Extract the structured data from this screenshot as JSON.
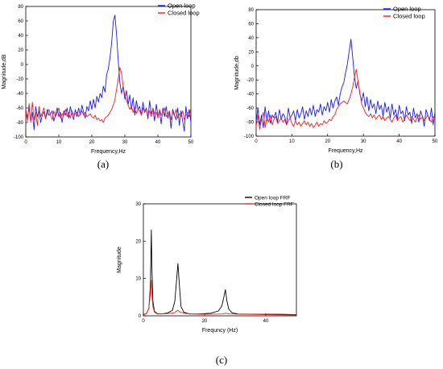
{
  "chart_data": [
    {
      "type": "line",
      "panel_label": "(a)",
      "xlabel": "Frequency,Hz",
      "ylabel": "Magnitude,dB",
      "xlim": [
        0,
        50
      ],
      "ylim": [
        -100,
        80
      ],
      "xticks": [
        "0",
        "10",
        "20",
        "30",
        "40",
        "50"
      ],
      "yticks": [
        "-100",
        "-80",
        "-60",
        "-40",
        "-20",
        "0",
        "20",
        "40",
        "60",
        "80"
      ],
      "legend_position": "top-right",
      "grid": false,
      "series": [
        {
          "name": "Open loop",
          "color": "#1a1aff",
          "x": [
            0,
            0.5,
            1,
            1.5,
            2,
            2.5,
            3,
            3.5,
            4,
            4.5,
            5,
            5.5,
            6,
            6.5,
            7,
            7.5,
            8,
            8.5,
            9,
            9.5,
            10,
            10.5,
            11,
            11.5,
            12,
            12.5,
            13,
            13.5,
            14,
            14.5,
            15,
            15.5,
            16,
            16.5,
            17,
            17.5,
            18,
            18.5,
            19,
            19.5,
            20,
            20.5,
            21,
            21.5,
            22,
            22.5,
            23,
            23.5,
            24,
            24.5,
            25,
            25.5,
            26,
            26.5,
            27,
            27.5,
            28,
            28.5,
            29,
            29.5,
            30,
            30.5,
            31,
            31.5,
            32,
            32.5,
            33,
            33.5,
            34,
            34.5,
            35,
            35.5,
            36,
            36.5,
            37,
            37.5,
            38,
            38.5,
            39,
            39.5,
            40,
            40.5,
            41,
            41.5,
            42,
            42.5,
            43,
            43.5,
            44,
            44.5,
            45,
            45.5,
            46,
            46.5,
            47,
            47.5,
            48,
            48.5,
            49,
            49.5,
            50
          ],
          "values": [
            -62,
            -74,
            -60,
            -78,
            -66,
            -90,
            -58,
            -72,
            -64,
            -80,
            -70,
            -65,
            -75,
            -62,
            -70,
            -68,
            -64,
            -78,
            -70,
            -60,
            -72,
            -66,
            -80,
            -64,
            -70,
            -60,
            -74,
            -58,
            -68,
            -76,
            -62,
            -72,
            -60,
            -70,
            -56,
            -66,
            -74,
            -58,
            -64,
            -50,
            -62,
            -48,
            -60,
            -44,
            -52,
            -40,
            -46,
            -30,
            -38,
            -14,
            -6,
            10,
            30,
            60,
            68,
            40,
            5,
            -25,
            -40,
            -30,
            -48,
            -36,
            -55,
            -42,
            -62,
            -46,
            -70,
            -50,
            -62,
            -58,
            -70,
            -52,
            -66,
            -60,
            -75,
            -50,
            -68,
            -62,
            -78,
            -55,
            -70,
            -64,
            -82,
            -60,
            -72,
            -58,
            -74,
            -66,
            -88,
            -62,
            -70,
            -76,
            -60,
            -84,
            -64,
            -78,
            -92,
            -58,
            -75,
            -62,
            -80
          ]
        },
        {
          "name": "Closed loop",
          "color": "#ff1a1a",
          "x": [
            0,
            0.5,
            1,
            1.5,
            2,
            2.5,
            3,
            3.5,
            4,
            4.5,
            5,
            5.5,
            6,
            6.5,
            7,
            7.5,
            8,
            8.5,
            9,
            9.5,
            10,
            10.5,
            11,
            11.5,
            12,
            12.5,
            13,
            13.5,
            14,
            14.5,
            15,
            15.5,
            16,
            16.5,
            17,
            17.5,
            18,
            18.5,
            19,
            19.5,
            20,
            20.5,
            21,
            21.5,
            22,
            22.5,
            23,
            23.5,
            24,
            24.5,
            25,
            25.5,
            26,
            26.5,
            27,
            27.5,
            28,
            28.5,
            29,
            29.5,
            30,
            30.5,
            31,
            31.5,
            32,
            32.5,
            33,
            33.5,
            34,
            34.5,
            35,
            35.5,
            36,
            36.5,
            37,
            37.5,
            38,
            38.5,
            39,
            39.5,
            40,
            40.5,
            41,
            41.5,
            42,
            42.5,
            43,
            43.5,
            44,
            44.5,
            45,
            45.5,
            46,
            46.5,
            47,
            47.5,
            48,
            48.5,
            49,
            49.5,
            50
          ],
          "values": [
            -64,
            -78,
            -54,
            -80,
            -52,
            -76,
            -66,
            -84,
            -58,
            -72,
            -66,
            -60,
            -74,
            -68,
            -62,
            -70,
            -76,
            -64,
            -72,
            -66,
            -60,
            -74,
            -68,
            -70,
            -62,
            -72,
            -66,
            -74,
            -64,
            -70,
            -68,
            -66,
            -72,
            -68,
            -64,
            -70,
            -66,
            -72,
            -70,
            -68,
            -72,
            -74,
            -70,
            -76,
            -74,
            -78,
            -76,
            -80,
            -74,
            -72,
            -70,
            -66,
            -62,
            -56,
            -48,
            -34,
            -20,
            -4,
            -12,
            -30,
            -42,
            -50,
            -56,
            -62,
            -58,
            -66,
            -60,
            -68,
            -62,
            -64,
            -70,
            -60,
            -66,
            -62,
            -70,
            -64,
            -72,
            -60,
            -68,
            -66,
            -74,
            -62,
            -70,
            -66,
            -60,
            -72,
            -68,
            -64,
            -76,
            -66,
            -70,
            -62,
            -74,
            -68,
            -72,
            -64,
            -76,
            -70,
            -66,
            -72,
            -60
          ]
        }
      ]
    },
    {
      "type": "line",
      "panel_label": "(b)",
      "xlabel": "Frequency,Hz",
      "ylabel": "Magnitude,db",
      "xlim": [
        0,
        50
      ],
      "ylim": [
        -100,
        80
      ],
      "xticks": [
        "0",
        "10",
        "20",
        "30",
        "40",
        "50"
      ],
      "yticks": [
        "-100",
        "-80",
        "-60",
        "-40",
        "-20",
        "0",
        "20",
        "40",
        "60",
        "80"
      ],
      "legend_position": "top-right",
      "grid": false,
      "series": [
        {
          "name": "Open loop",
          "color": "#1a1aff",
          "x": [
            0,
            0.5,
            1,
            1.5,
            2,
            2.5,
            3,
            3.5,
            4,
            4.5,
            5,
            5.5,
            6,
            6.5,
            7,
            7.5,
            8,
            8.5,
            9,
            9.5,
            10,
            10.5,
            11,
            11.5,
            12,
            12.5,
            13,
            13.5,
            14,
            14.5,
            15,
            15.5,
            16,
            16.5,
            17,
            17.5,
            18,
            18.5,
            19,
            19.5,
            20,
            20.5,
            21,
            21.5,
            22,
            22.5,
            23,
            23.5,
            24,
            24.5,
            25,
            25.5,
            26,
            26.5,
            27,
            27.5,
            28,
            28.5,
            29,
            29.5,
            30,
            30.5,
            31,
            31.5,
            32,
            32.5,
            33,
            33.5,
            34,
            34.5,
            35,
            35.5,
            36,
            36.5,
            37,
            37.5,
            38,
            38.5,
            39,
            39.5,
            40,
            40.5,
            41,
            41.5,
            42,
            42.5,
            43,
            43.5,
            44,
            44.5,
            45,
            45.5,
            46,
            46.5,
            47,
            47.5,
            48,
            48.5,
            49,
            49.5,
            50
          ],
          "values": [
            -80,
            -60,
            -84,
            -70,
            -88,
            -58,
            -78,
            -64,
            -82,
            -70,
            -74,
            -66,
            -80,
            -62,
            -76,
            -68,
            -72,
            -84,
            -60,
            -74,
            -70,
            -64,
            -78,
            -62,
            -74,
            -68,
            -58,
            -76,
            -64,
            -72,
            -60,
            -70,
            -56,
            -72,
            -62,
            -66,
            -54,
            -70,
            -58,
            -64,
            -52,
            -66,
            -48,
            -60,
            -50,
            -44,
            -56,
            -40,
            -30,
            -24,
            -10,
            2,
            20,
            38,
            12,
            -15,
            -32,
            -22,
            -40,
            -50,
            -38,
            -58,
            -44,
            -64,
            -48,
            -60,
            -54,
            -68,
            -50,
            -62,
            -56,
            -72,
            -52,
            -66,
            -58,
            -74,
            -54,
            -70,
            -62,
            -76,
            -56,
            -68,
            -64,
            -78,
            -58,
            -70,
            -66,
            -82,
            -60,
            -74,
            -68,
            -80,
            -64,
            -72,
            -86,
            -62,
            -70,
            -78,
            -60,
            -84,
            -66
          ]
        },
        {
          "name": "Closed loop",
          "color": "#ff1a1a",
          "x": [
            0,
            0.5,
            1,
            1.5,
            2,
            2.5,
            3,
            3.5,
            4,
            4.5,
            5,
            5.5,
            6,
            6.5,
            7,
            7.5,
            8,
            8.5,
            9,
            9.5,
            10,
            10.5,
            11,
            11.5,
            12,
            12.5,
            13,
            13.5,
            14,
            14.5,
            15,
            15.5,
            16,
            16.5,
            17,
            17.5,
            18,
            18.5,
            19,
            19.5,
            20,
            20.5,
            21,
            21.5,
            22,
            22.5,
            23,
            23.5,
            24,
            24.5,
            25,
            25.5,
            26,
            26.5,
            27,
            27.5,
            28,
            28.5,
            29,
            29.5,
            30,
            30.5,
            31,
            31.5,
            32,
            32.5,
            33,
            33.5,
            34,
            34.5,
            35,
            35.5,
            36,
            36.5,
            37,
            37.5,
            38,
            38.5,
            39,
            39.5,
            40,
            40.5,
            41,
            41.5,
            42,
            42.5,
            43,
            43.5,
            44,
            44.5,
            45,
            45.5,
            46,
            46.5,
            47,
            47.5,
            48,
            48.5,
            49,
            49.5,
            50
          ],
          "values": [
            -86,
            -70,
            -90,
            -76,
            -66,
            -88,
            -74,
            -80,
            -70,
            -84,
            -76,
            -72,
            -82,
            -78,
            -74,
            -80,
            -76,
            -84,
            -78,
            -74,
            -82,
            -86,
            -78,
            -84,
            -80,
            -86,
            -82,
            -78,
            -84,
            -80,
            -86,
            -82,
            -88,
            -84,
            -80,
            -86,
            -82,
            -84,
            -78,
            -82,
            -80,
            -76,
            -78,
            -72,
            -70,
            -62,
            -58,
            -54,
            -52,
            -50,
            -52,
            -54,
            -48,
            -40,
            -30,
            -16,
            -5,
            -22,
            -38,
            -54,
            -60,
            -66,
            -70,
            -72,
            -68,
            -74,
            -70,
            -76,
            -72,
            -70,
            -76,
            -72,
            -78,
            -74,
            -72,
            -76,
            -80,
            -74,
            -70,
            -78,
            -74,
            -72,
            -80,
            -76,
            -70,
            -74,
            -78,
            -72,
            -76,
            -80,
            -74,
            -70,
            -76,
            -72,
            -78,
            -74,
            -70,
            -76,
            -80,
            -72,
            -76
          ]
        }
      ]
    },
    {
      "type": "line",
      "panel_label": "(c)",
      "xlabel": "Frequncy (Hz)",
      "ylabel": "Magnitude",
      "xlim": [
        0,
        50
      ],
      "ylim": [
        0,
        30
      ],
      "xticks": [
        "0",
        "20",
        "40"
      ],
      "yticks": [
        "0",
        "10",
        "20",
        "30"
      ],
      "legend_position": "top-right",
      "grid": false,
      "series": [
        {
          "name": "Open loop FRF",
          "color": "#000000",
          "x": [
            0,
            1,
            1.8,
            2.3,
            2.6,
            2.8,
            3.1,
            3.6,
            4.5,
            6,
            8,
            9.5,
            10.3,
            10.8,
            11.3,
            11.8,
            12.3,
            13.2,
            15,
            18,
            22,
            24.5,
            25.6,
            26.3,
            26.8,
            27.3,
            27.9,
            29,
            31,
            35,
            40,
            45,
            50
          ],
          "values": [
            0.3,
            0.6,
            2,
            8,
            23,
            13,
            4,
            1.2,
            0.6,
            0.5,
            0.8,
            1.5,
            4,
            9,
            14,
            8,
            2.5,
            1,
            0.5,
            0.5,
            0.7,
            1.3,
            2.6,
            5,
            7,
            4,
            1.8,
            0.8,
            0.5,
            0.4,
            0.4,
            0.4,
            0.3
          ]
        },
        {
          "name": "Closed loop FRF",
          "color": "#ff1a1a",
          "x": [
            0,
            1,
            1.8,
            2.3,
            2.6,
            2.8,
            3.1,
            3.6,
            4.5,
            6,
            8,
            10,
            10.8,
            11.3,
            12,
            14,
            18,
            22,
            26,
            27,
            28,
            32,
            40,
            50
          ],
          "values": [
            0.2,
            0.6,
            2,
            6,
            9.5,
            6,
            2.5,
            1,
            0.5,
            0.5,
            0.6,
            0.8,
            1.2,
            1.5,
            1,
            0.6,
            0.4,
            0.4,
            0.5,
            0.7,
            0.5,
            0.4,
            0.3,
            0.2
          ]
        }
      ]
    }
  ]
}
